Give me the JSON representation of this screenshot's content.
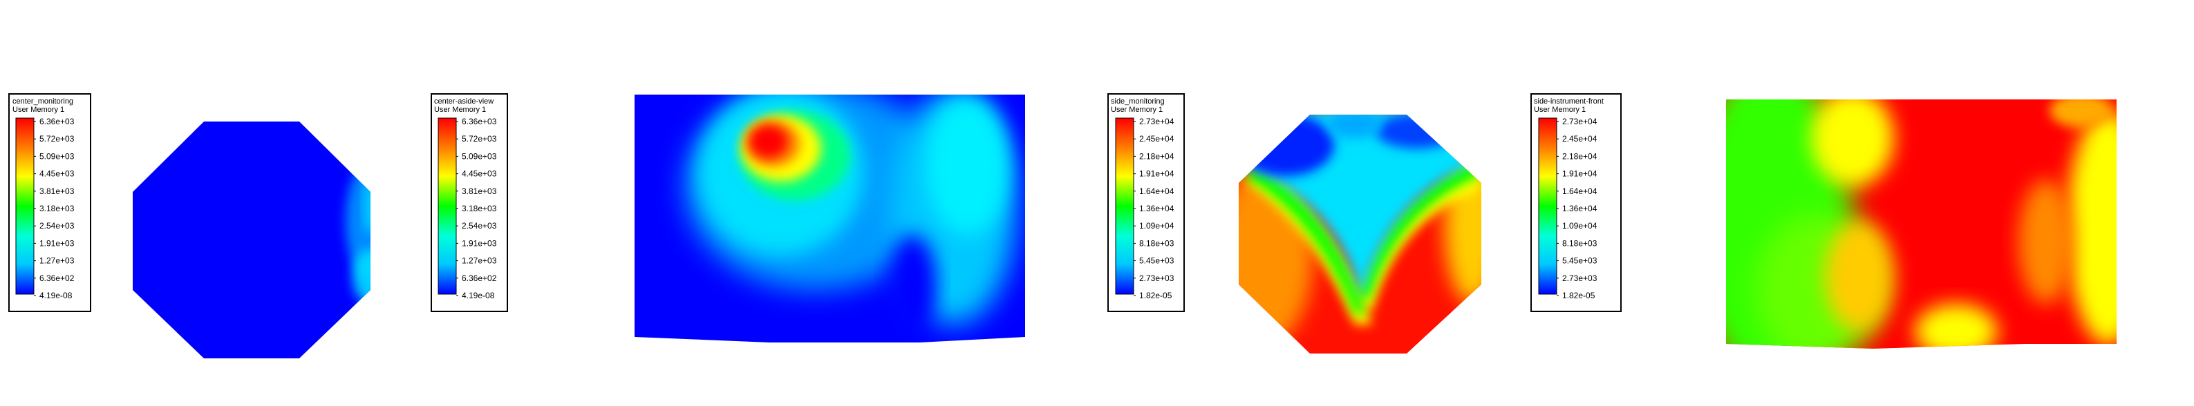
{
  "legends": [
    {
      "title": "center_monitoring",
      "subtitle": "User Memory 1",
      "ticks": [
        "6.36e+03",
        "5.72e+03",
        "5.09e+03",
        "4.45e+03",
        "3.81e+03",
        "3.18e+03",
        "2.54e+03",
        "1.91e+03",
        "1.27e+03",
        "6.36e+02",
        "4.19e-08"
      ]
    },
    {
      "title": "center-aside-view",
      "subtitle": "User Memory 1",
      "ticks": [
        "6.36e+03",
        "5.72e+03",
        "5.09e+03",
        "4.45e+03",
        "3.81e+03",
        "3.18e+03",
        "2.54e+03",
        "1.91e+03",
        "1.27e+03",
        "6.36e+02",
        "4.19e-08"
      ]
    },
    {
      "title": "side_monitoring",
      "subtitle": "User Memory 1",
      "ticks": [
        "2.73e+04",
        "2.45e+04",
        "2.18e+04",
        "1.91e+04",
        "1.64e+04",
        "1.36e+04",
        "1.09e+04",
        "8.18e+03",
        "5.45e+03",
        "2.73e+03",
        "1.82e-05"
      ]
    },
    {
      "title": "side-instrument-front",
      "subtitle": "User Memory 1",
      "ticks": [
        "2.73e+04",
        "2.45e+04",
        "2.18e+04",
        "1.91e+04",
        "1.64e+04",
        "1.36e+04",
        "1.09e+04",
        "8.18e+03",
        "5.45e+03",
        "2.73e+03",
        "1.82e-05"
      ]
    }
  ],
  "colormap": [
    "#ff0000",
    "#ff7f00",
    "#ffff00",
    "#00ff00",
    "#00ffd8",
    "#00c8ff",
    "#0000ff"
  ],
  "plots": [
    {
      "shape": "octagon",
      "dominant_color": "#0000ff"
    },
    {
      "shape": "slab",
      "dominant_color": "#0000ff"
    },
    {
      "shape": "octagon",
      "dominant_color": "#ff0000"
    },
    {
      "shape": "slab",
      "dominant_color": "#ff0000"
    }
  ]
}
